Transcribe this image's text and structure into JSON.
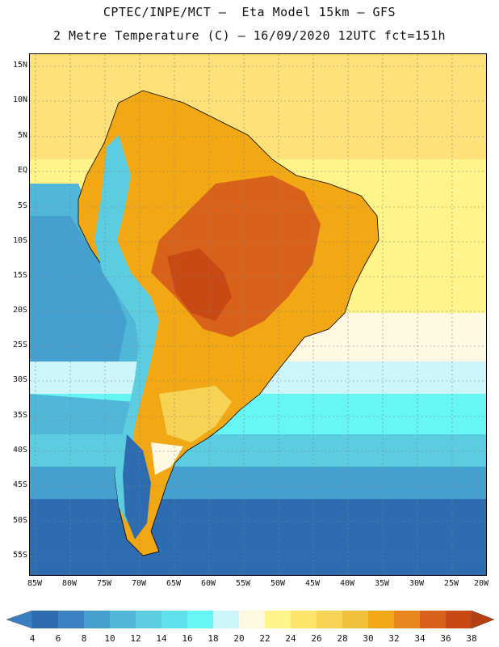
{
  "header": {
    "line1": "CPTEC/INPE/MCT –  Eta Model 15km – GFS",
    "line2": "2 Metre Temperature (C) – 16/09/2020 12UTC fct=151h"
  },
  "map": {
    "region": "South America",
    "variable": "2 Metre Temperature",
    "units": "C",
    "lat_ticks": [
      "15N",
      "10N",
      "5N",
      "EQ",
      "5S",
      "10S",
      "15S",
      "20S",
      "25S",
      "30S",
      "35S",
      "40S",
      "45S",
      "50S",
      "55S"
    ],
    "lon_ticks": [
      "85W",
      "80W",
      "75W",
      "70W",
      "65W",
      "60W",
      "55W",
      "50W",
      "45W",
      "40W",
      "35W",
      "30W",
      "25W",
      "20W"
    ]
  },
  "colorbar": {
    "labels": [
      "4",
      "6",
      "8",
      "10",
      "12",
      "14",
      "16",
      "18",
      "20",
      "22",
      "24",
      "26",
      "28",
      "30",
      "32",
      "34",
      "36",
      "38"
    ],
    "colors": {
      "lt4": "#3a7fc0",
      "c4_6": "#2e6cb2",
      "c6_8": "#3a82c2",
      "c8_10": "#45a0cf",
      "c10_12": "#51b7d8",
      "c12_14": "#5ccde0",
      "c14_16": "#60e0ea",
      "c16_18": "#66f6f6",
      "c18_20": "#cdf6fb",
      "c20_22": "#fff9e4",
      "c22_24": "#fff48a",
      "c24_26": "#fde46a",
      "c26_28": "#f6d255",
      "c28_30": "#f0c03c",
      "c30_32": "#f2a814",
      "c32_34": "#e8861e",
      "c34_36": "#d9621a",
      "c36_38": "#c94914",
      "gt38": "#b83d10"
    }
  }
}
